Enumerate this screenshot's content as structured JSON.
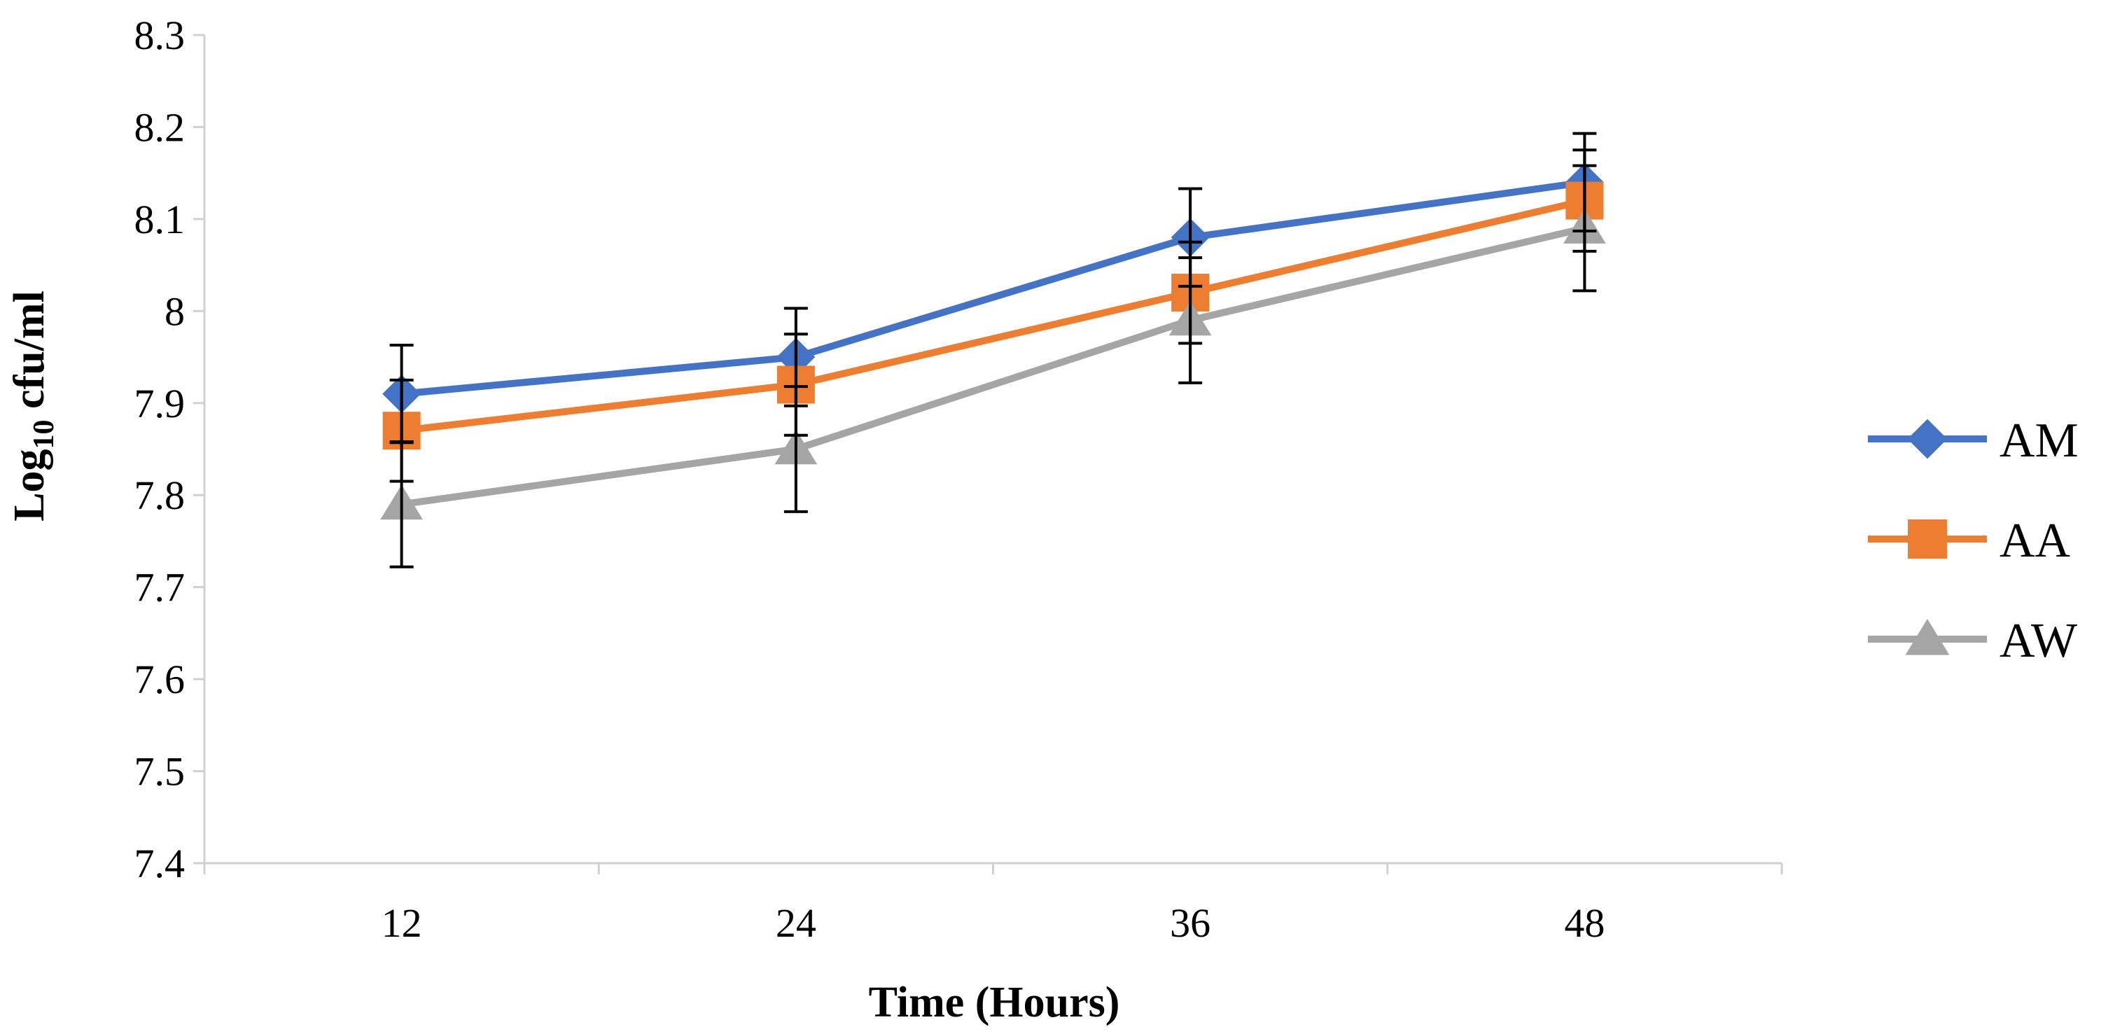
{
  "chart_data": {
    "type": "line",
    "title": "",
    "xlabel": "Time (Hours)",
    "ylabel_main": "Log",
    "ylabel_sub": "10",
    "ylabel_rest": " cfu/ml",
    "categories": [
      "12",
      "24",
      "36",
      "48"
    ],
    "yticks": [
      "7.4",
      "7.5",
      "7.6",
      "7.7",
      "7.8",
      "7.9",
      "8",
      "8.1",
      "8.2",
      "8.3"
    ],
    "ylim": [
      7.4,
      8.3
    ],
    "grid": false,
    "legend_position": "right",
    "series": [
      {
        "name": "AM",
        "color": "#4472C4",
        "marker": "diamond",
        "values": [
          7.91,
          7.95,
          8.08,
          8.14
        ],
        "errors": [
          0.053,
          0.053,
          0.053,
          0.053
        ]
      },
      {
        "name": "AA",
        "color": "#ED7D31",
        "marker": "square",
        "values": [
          7.87,
          7.92,
          8.02,
          8.12
        ],
        "errors": [
          0.055,
          0.055,
          0.055,
          0.055
        ]
      },
      {
        "name": "AW",
        "color": "#A5A5A5",
        "marker": "triangle",
        "values": [
          7.79,
          7.85,
          7.99,
          8.09
        ],
        "errors": [
          0.068,
          0.068,
          0.068,
          0.068
        ]
      }
    ]
  }
}
